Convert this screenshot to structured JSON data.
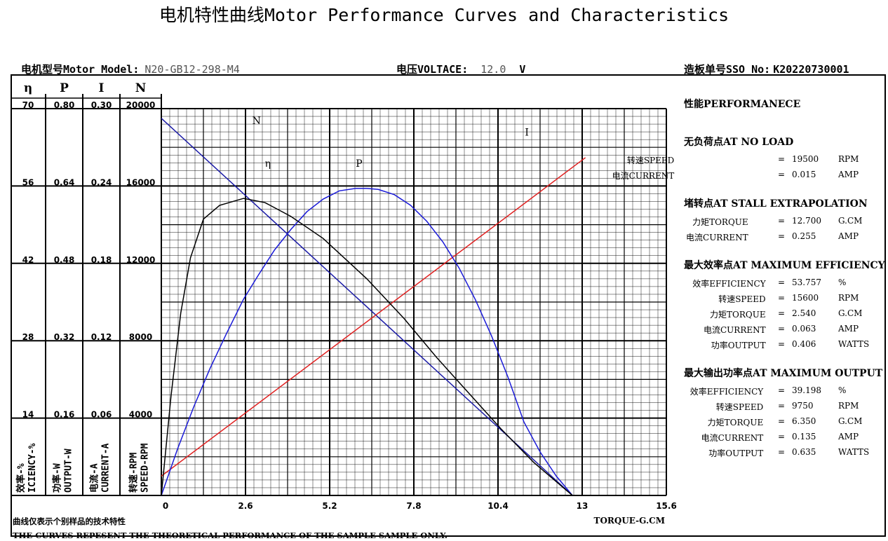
{
  "header": {
    "title": "电机特性曲线Motor Performance Curves and Characteristics",
    "model_label": "电机型号Motor Model:",
    "model_value": "N20-GB12-298-M4",
    "voltage_label": "电压VOLTACE:",
    "voltage_value": "12.0",
    "voltage_unit": "V",
    "sso_label": "造板单号SSO No:",
    "sso_value": "K20220730001"
  },
  "axes_table": {
    "heads": [
      "η",
      "P",
      "I",
      "N"
    ],
    "rows": [
      [
        "70",
        "0.80",
        "0.30",
        "20000"
      ],
      [
        "56",
        "0.64",
        "0.24",
        "16000"
      ],
      [
        "42",
        "0.48",
        "0.18",
        "12000"
      ],
      [
        "28",
        "0.32",
        "0.12",
        "8000"
      ],
      [
        "14",
        "0.16",
        "0.06",
        "4000"
      ]
    ],
    "units": [
      [
        "效率-%",
        "ICIENCY-%"
      ],
      [
        "功率-W",
        "OUTPUT-W"
      ],
      [
        "电流-A",
        "CURRENT-A"
      ],
      [
        "转速-RPM",
        "SPEED-RPM"
      ]
    ]
  },
  "chart_data": {
    "type": "line",
    "xlabel": "TORQUE-G.CM",
    "x_ticks": [
      "0",
      "2.6",
      "5.2",
      "7.8",
      "10.4",
      "13",
      "15.6"
    ],
    "xlim": [
      0,
      15.6
    ],
    "series": [
      {
        "name": "N",
        "color": "#1a1aa6",
        "axis_max": 20000,
        "x": [
          0,
          12.7
        ],
        "y": [
          19500,
          0
        ]
      },
      {
        "name": "I",
        "color": "#e02020",
        "axis_max": 0.3,
        "x": [
          0,
          13.1
        ],
        "y": [
          0.015,
          0.262
        ]
      },
      {
        "name": "P",
        "color": "#1a1ad8",
        "axis_max": 0.8,
        "x": [
          0,
          0.5,
          1.0,
          1.5,
          2.0,
          2.54,
          3.0,
          3.5,
          4.0,
          4.5,
          5.0,
          5.5,
          6.0,
          6.35,
          6.7,
          7.2,
          7.7,
          8.2,
          8.7,
          9.2,
          9.7,
          10.2,
          10.7,
          11.2,
          11.7,
          12.2,
          12.7
        ],
        "y": [
          0,
          0.096,
          0.183,
          0.262,
          0.333,
          0.406,
          0.456,
          0.508,
          0.55,
          0.587,
          0.613,
          0.63,
          0.635,
          0.635,
          0.633,
          0.622,
          0.6,
          0.567,
          0.524,
          0.47,
          0.405,
          0.33,
          0.246,
          0.152,
          0.09,
          0.04,
          0
        ]
      },
      {
        "name": "η",
        "color": "#000000",
        "axis_max": 70,
        "x": [
          0,
          0.3,
          0.6,
          0.9,
          1.3,
          1.8,
          2.54,
          3.2,
          4.0,
          5.0,
          6.35,
          7.5,
          8.5,
          9.5,
          10.5,
          11.5,
          12.2,
          12.7
        ],
        "y": [
          0,
          18,
          33,
          43,
          50,
          52.5,
          53.757,
          53,
          50.5,
          46.5,
          39.198,
          32,
          25,
          18.5,
          12,
          6,
          2.5,
          0
        ]
      }
    ]
  },
  "performance": {
    "title": "性能PERFORMANECE",
    "sections": [
      {
        "title": "无负荷点AT NO LOAD",
        "rows": [
          {
            "label": "转速SPEED",
            "value": "19500",
            "unit": "RPM"
          },
          {
            "label": "电流CURRENT",
            "value": "0.015",
            "unit": "AMP"
          }
        ]
      },
      {
        "title": "堵转点AT STALL EXTRAPOLATION",
        "rows": [
          {
            "label": "力矩TORQUE",
            "value": "12.700",
            "unit": "G.CM"
          },
          {
            "label": "电流CURRENT",
            "value": "0.255",
            "unit": "AMP"
          }
        ]
      },
      {
        "title": "最大效率点AT MAXIMUM EFFICIENCY",
        "rows": [
          {
            "label": "效率EFFICIENCY",
            "value": "53.757",
            "unit": "%"
          },
          {
            "label": "转速SPEED",
            "value": "15600",
            "unit": "RPM"
          },
          {
            "label": "力矩TORQUE",
            "value": "2.540",
            "unit": "G.CM"
          },
          {
            "label": "电流CURRENT",
            "value": "0.063",
            "unit": "AMP"
          },
          {
            "label": "功率OUTPUT",
            "value": "0.406",
            "unit": "WATTS"
          }
        ]
      },
      {
        "title": "最大输出功率点AT MAXIMUM OUTPUT",
        "rows": [
          {
            "label": "效率EFFICIENCY",
            "value": "39.198",
            "unit": "%"
          },
          {
            "label": "转速SPEED",
            "value": "9750",
            "unit": "RPM"
          },
          {
            "label": "力矩TORQUE",
            "value": "6.350",
            "unit": "G.CM"
          },
          {
            "label": "电流CURRENT",
            "value": "0.135",
            "unit": "AMP"
          },
          {
            "label": "功率OUTPUT",
            "value": "0.635",
            "unit": "WATTS"
          }
        ]
      }
    ]
  },
  "footer": {
    "note_cn": "曲线仅表示个别样品的技术特性",
    "note_en": "THE CURVES REPESENT THE THEORETICAL PERFORMANCE  OF THE SAMPLE SAMPLE ONLY."
  }
}
